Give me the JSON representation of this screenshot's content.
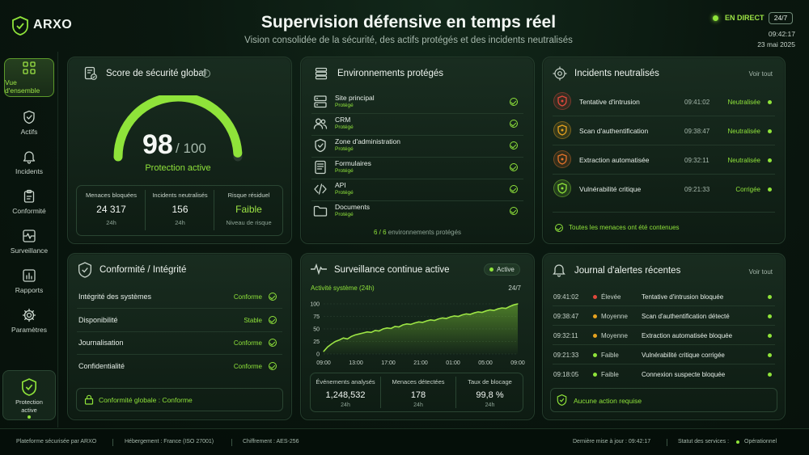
{
  "brand": {
    "name": "ARXO"
  },
  "header": {
    "title": "Supervision défensive en temps réel",
    "subtitle": "Vision consolidée de la sécurité, des actifs protégés et des incidents neutralisés",
    "live_label": "EN DIRECT",
    "live_badge": "24/7",
    "time": "09:42:17",
    "date": "23 mai 2025"
  },
  "sidebar": {
    "items": [
      {
        "label": "Vue d'ensemble",
        "icon": "grid-icon"
      },
      {
        "label": "Actifs",
        "icon": "shield-icon"
      },
      {
        "label": "Incidents",
        "icon": "bell-icon"
      },
      {
        "label": "Conformité",
        "icon": "clipboard-icon"
      },
      {
        "label": "Surveillance",
        "icon": "pulse-icon"
      },
      {
        "label": "Rapports",
        "icon": "bar-chart-icon"
      },
      {
        "label": "Paramètres",
        "icon": "gear-icon"
      }
    ],
    "protection_label_1": "Protection",
    "protection_label_2": "active"
  },
  "score": {
    "title": "Score de sécurité global",
    "value": "98",
    "max": "/ 100",
    "fraction": 0.98,
    "status": "Protection active",
    "stats": [
      {
        "label": "Menaces bloquées",
        "value": "24 317",
        "sub": "24h"
      },
      {
        "label": "Incidents neutralisés",
        "value": "156",
        "sub": "24h"
      },
      {
        "label": "Risque résiduel",
        "value": "Faible",
        "sub": "Niveau de risque"
      }
    ]
  },
  "environments": {
    "title": "Environnements protégés",
    "items": [
      {
        "name": "Site principal",
        "status": "Protégé",
        "icon": "server-icon"
      },
      {
        "name": "CRM",
        "status": "Protégé",
        "icon": "users-icon"
      },
      {
        "name": "Zone d'administration",
        "status": "Protégé",
        "icon": "shield-icon"
      },
      {
        "name": "Formulaires",
        "status": "Protégé",
        "icon": "form-icon"
      },
      {
        "name": "API",
        "status": "Protégé",
        "icon": "code-icon"
      },
      {
        "name": "Documents",
        "status": "Protégé",
        "icon": "folder-icon"
      }
    ],
    "footer_count": "6 / 6",
    "footer_text": "environnements protégés"
  },
  "incidents": {
    "title": "Incidents neutralisés",
    "view_all": "Voir tout",
    "items": [
      {
        "name": "Tentative d'intrusion",
        "time": "09:41:02",
        "status": "Neutralisée",
        "color": "#e0483c"
      },
      {
        "name": "Scan d'authentification",
        "time": "09:38:47",
        "status": "Neutralisée",
        "color": "#e6a21f"
      },
      {
        "name": "Extraction automatisée",
        "time": "09:32:11",
        "status": "Neutralisée",
        "color": "#e6732a"
      },
      {
        "name": "Vulnérabilité critique",
        "time": "09:21:33",
        "status": "Corrigée",
        "color": "#8fe33a"
      }
    ],
    "footer": "Toutes les menaces ont été contenues"
  },
  "compliance": {
    "title": "Conformité / Intégrité",
    "items": [
      {
        "name": "Intégrité des systèmes",
        "status": "Conforme"
      },
      {
        "name": "Disponibilité",
        "status": "Stable"
      },
      {
        "name": "Journalisation",
        "status": "Conforme"
      },
      {
        "name": "Confidentialité",
        "status": "Conforme"
      }
    ],
    "footer": "Conformité globale : Conforme"
  },
  "monitoring": {
    "title": "Surveillance continue active",
    "badge": "Active",
    "chart_label": "Activité système (24h)",
    "chart_badge": "24/7",
    "stats": [
      {
        "label": "Événements analysés",
        "value": "1,248,532",
        "sub": "24h"
      },
      {
        "label": "Menaces détectées",
        "value": "178",
        "sub": "24h"
      },
      {
        "label": "Taux de blocage",
        "value": "99,8 %",
        "sub": "24h"
      }
    ]
  },
  "chart_data": {
    "type": "area",
    "x_ticks": [
      "09:00",
      "13:00",
      "17:00",
      "21:00",
      "01:00",
      "05:00",
      "09:00"
    ],
    "y_ticks": [
      "100",
      "75",
      "50",
      "25",
      "0"
    ],
    "ylim": [
      0,
      100
    ],
    "grid": true,
    "values": [
      5,
      14,
      20,
      25,
      28,
      32,
      30,
      35,
      38,
      40,
      42,
      44,
      43,
      47,
      46,
      50,
      52,
      51,
      55,
      54,
      58,
      60,
      59,
      62,
      64,
      63,
      66,
      68,
      67,
      70,
      72,
      71,
      74,
      76,
      75,
      78,
      80,
      79,
      82,
      84,
      83,
      86,
      88,
      87,
      90,
      92,
      91,
      95,
      98,
      100
    ]
  },
  "alerts": {
    "title": "Journal d'alertes récentes",
    "view_all": "Voir tout",
    "items": [
      {
        "time": "09:41:02",
        "level": "Élevée",
        "color": "#e0483c",
        "text": "Tentative d'intrusion bloquée"
      },
      {
        "time": "09:38:47",
        "level": "Moyenne",
        "color": "#e6a21f",
        "text": "Scan d'authentification détecté"
      },
      {
        "time": "09:32:11",
        "level": "Moyenne",
        "color": "#e6a21f",
        "text": "Extraction automatisée bloquée"
      },
      {
        "time": "09:21:33",
        "level": "Faible",
        "color": "#8fe33a",
        "text": "Vulnérabilité critique corrigée"
      },
      {
        "time": "09:18:05",
        "level": "Faible",
        "color": "#8fe33a",
        "text": "Connexion suspecte bloquée"
      }
    ],
    "footer": "Aucune action requise"
  },
  "footer": {
    "platform": "Plateforme sécurisée par ARXO",
    "hosting": "Hébergement : France (ISO 27001)",
    "encryption": "Chiffrement : AES-256",
    "last_update": "Dernière mise à jour : 09:42:17",
    "services_label": "Statut des services :",
    "services_status": "Opérationnel"
  }
}
